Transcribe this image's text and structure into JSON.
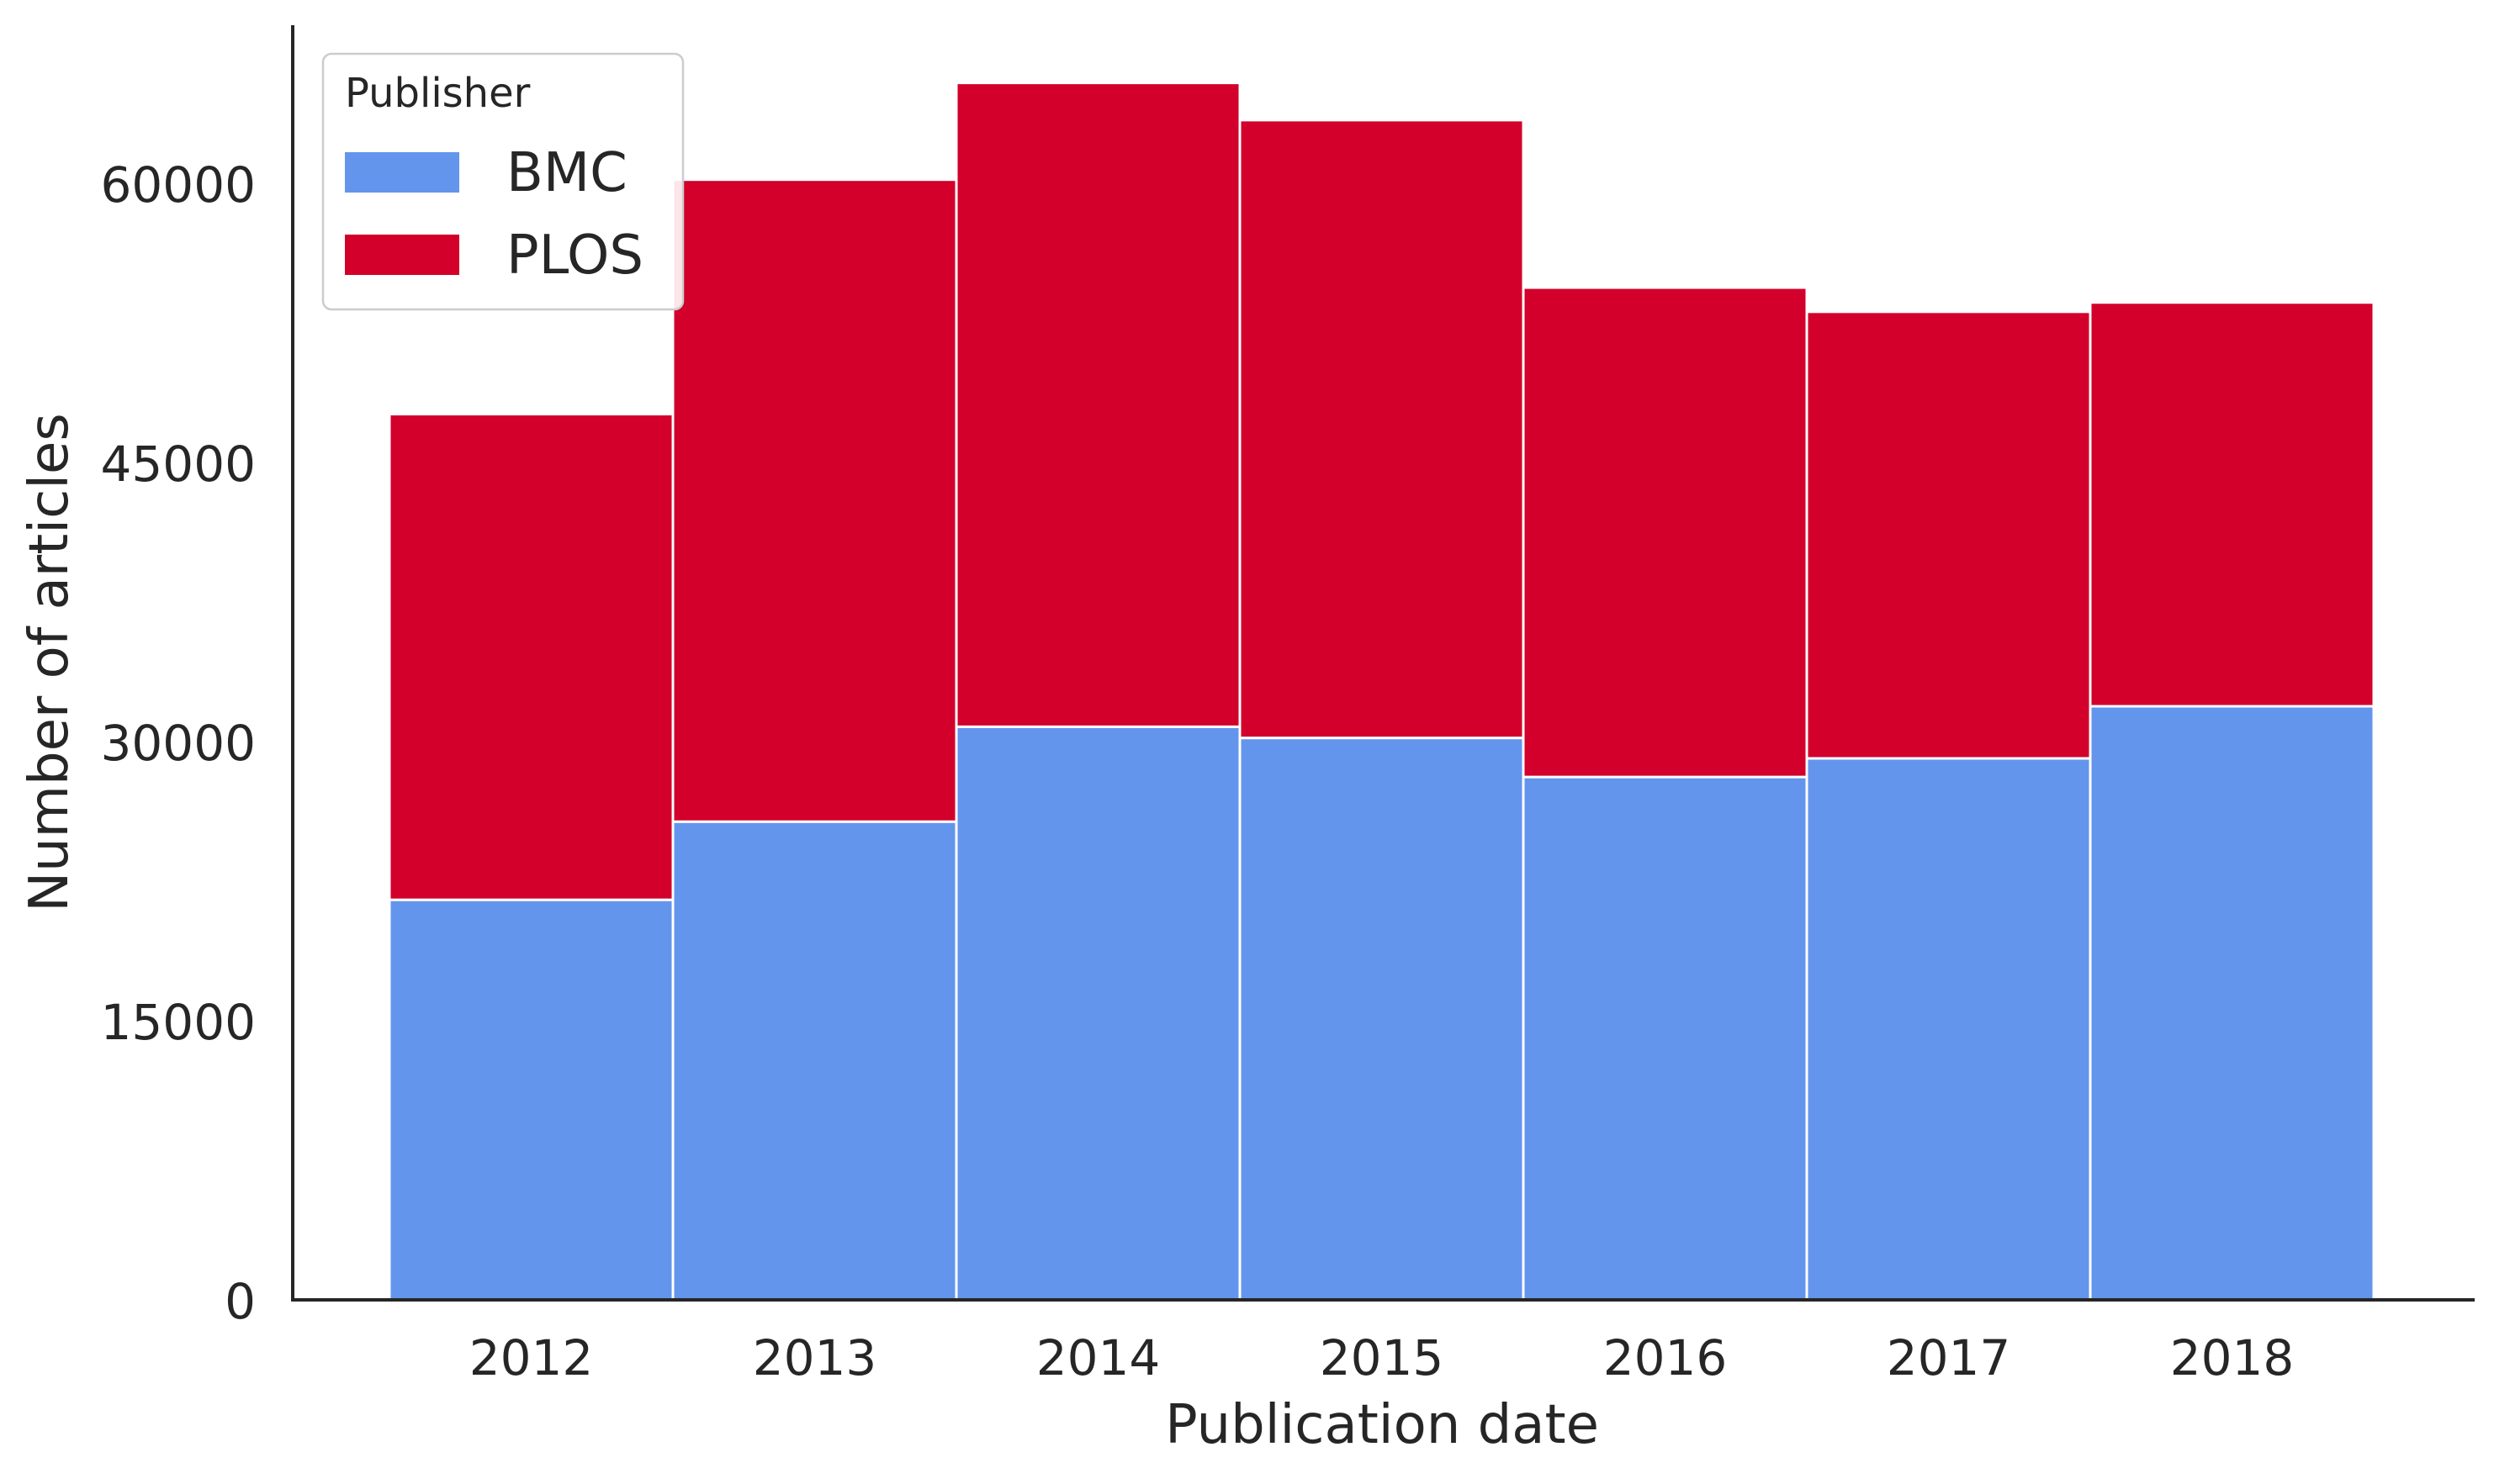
{
  "chart_data": {
    "type": "bar",
    "stacked": true,
    "categories": [
      "2012",
      "2013",
      "2014",
      "2015",
      "2016",
      "2017",
      "2018"
    ],
    "series": [
      {
        "name": "BMC",
        "color": "#6495ED",
        "values": [
          21500,
          25700,
          30800,
          30200,
          28100,
          29100,
          31900
        ]
      },
      {
        "name": "PLOS",
        "color": "#D2002A",
        "values": [
          26100,
          34500,
          34600,
          33200,
          26300,
          24000,
          21700
        ]
      }
    ],
    "xlabel": "Publication date",
    "ylabel": "Number of articles",
    "ylim": [
      0,
      68500
    ],
    "yticks": [
      "0",
      "15000",
      "30000",
      "45000",
      "60000"
    ],
    "legend": {
      "title": "Publisher",
      "placement": "top-left"
    },
    "grid": false
  }
}
